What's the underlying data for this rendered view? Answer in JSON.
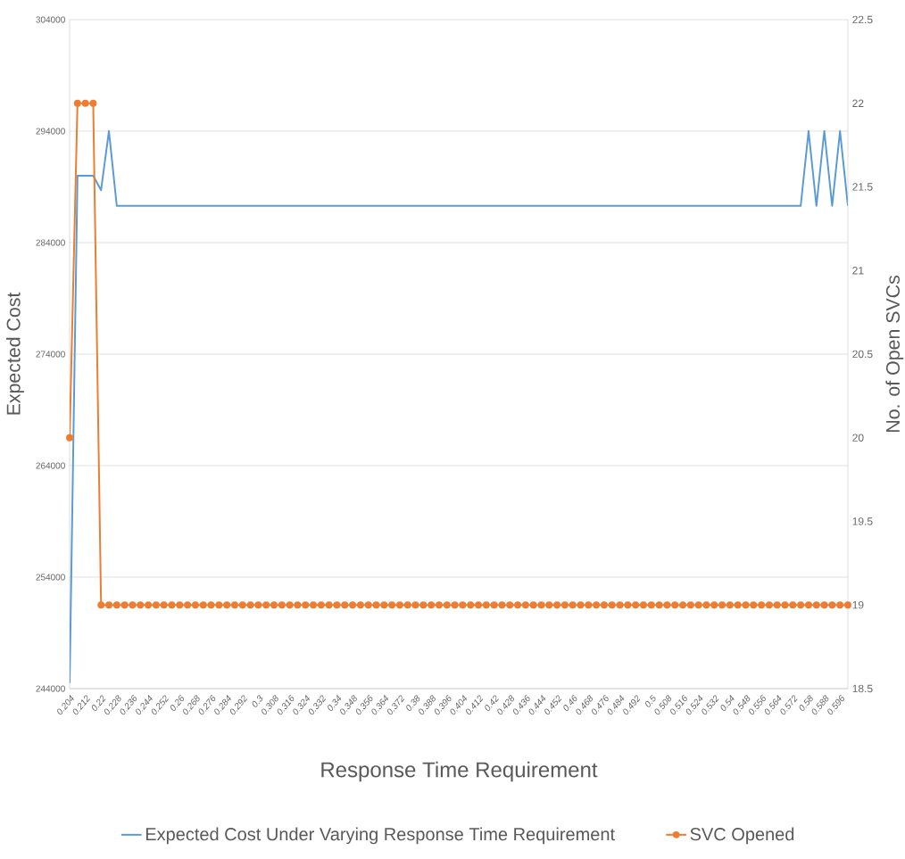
{
  "chart_data": {
    "type": "line",
    "xlabel": "Response Time Requirement",
    "ylabel": "Expected Cost",
    "y2label": "No. of Open SVCs",
    "categories": [
      "0.204",
      null,
      "0.212",
      null,
      "0.22",
      null,
      "0.228",
      null,
      "0.236",
      null,
      "0.244",
      null,
      "0.252",
      null,
      "0.26",
      null,
      "0.268",
      null,
      "0.276",
      null,
      "0.284",
      null,
      "0.292",
      null,
      "0.3",
      null,
      "0.308",
      null,
      "0.316",
      null,
      "0.324",
      null,
      "0.332",
      null,
      "0.34",
      null,
      "0.348",
      null,
      "0.356",
      null,
      "0.364",
      null,
      "0.372",
      null,
      "0.38",
      null,
      "0.388",
      null,
      "0.396",
      null,
      "0.404",
      null,
      "0.412",
      null,
      "0.42",
      null,
      "0.428",
      null,
      "0.436",
      null,
      "0.444",
      null,
      "0.452",
      null,
      "0.46",
      null,
      "0.468",
      null,
      "0.476",
      null,
      "0.484",
      null,
      "0.492",
      null,
      "0.5",
      null,
      "0.508",
      null,
      "0.516",
      null,
      "0.524",
      null,
      "0.532",
      null,
      "0.54",
      null,
      "0.548",
      null,
      "0.556",
      null,
      "0.564",
      null,
      "0.572",
      null,
      "0.58",
      null,
      "0.588",
      null,
      "0.596",
      null
    ],
    "series": [
      {
        "name": "Expected Cost Under Varying Response Time Requirement",
        "color": "#5b9bd5",
        "marker": "none",
        "values": [
          244500,
          290000,
          290000,
          290000,
          288700,
          294000,
          287300,
          287300,
          287300,
          287300,
          287300,
          287300,
          287300,
          287300,
          287300,
          287300,
          287300,
          287300,
          287300,
          287300,
          287300,
          287300,
          287300,
          287300,
          287300,
          287300,
          287300,
          287300,
          287300,
          287300,
          287300,
          287300,
          287300,
          287300,
          287300,
          287300,
          287300,
          287300,
          287300,
          287300,
          287300,
          287300,
          287300,
          287300,
          287300,
          287300,
          287300,
          287300,
          287300,
          287300,
          287300,
          287300,
          287300,
          287300,
          287300,
          287300,
          287300,
          287300,
          287300,
          287300,
          287300,
          287300,
          287300,
          287300,
          287300,
          287300,
          287300,
          287300,
          287300,
          287300,
          287300,
          287300,
          287300,
          287300,
          287300,
          287300,
          287300,
          287300,
          287300,
          287300,
          287300,
          287300,
          287300,
          287300,
          287300,
          287300,
          287300,
          287300,
          287300,
          287300,
          287300,
          287300,
          287300,
          287300,
          294000,
          287300,
          294000,
          287300,
          294000,
          287300
        ]
      },
      {
        "name": "SVC Opened",
        "color": "#ed7d31",
        "marker": "circle",
        "axis": "y2",
        "values": [
          20,
          22,
          22,
          22,
          19,
          19,
          19,
          19,
          19,
          19,
          19,
          19,
          19,
          19,
          19,
          19,
          19,
          19,
          19,
          19,
          19,
          19,
          19,
          19,
          19,
          19,
          19,
          19,
          19,
          19,
          19,
          19,
          19,
          19,
          19,
          19,
          19,
          19,
          19,
          19,
          19,
          19,
          19,
          19,
          19,
          19,
          19,
          19,
          19,
          19,
          19,
          19,
          19,
          19,
          19,
          19,
          19,
          19,
          19,
          19,
          19,
          19,
          19,
          19,
          19,
          19,
          19,
          19,
          19,
          19,
          19,
          19,
          19,
          19,
          19,
          19,
          19,
          19,
          19,
          19,
          19,
          19,
          19,
          19,
          19,
          19,
          19,
          19,
          19,
          19,
          19,
          19,
          19,
          19,
          19,
          19,
          19,
          19,
          19,
          19
        ]
      }
    ],
    "ylim": [
      244000,
      304000
    ],
    "yticks": [
      244000,
      254000,
      264000,
      274000,
      284000,
      294000,
      304000
    ],
    "y2lim": [
      18.5,
      22.5
    ],
    "y2ticks": [
      18.5,
      19,
      19.5,
      20,
      20.5,
      21,
      21.5,
      22,
      22.5
    ],
    "grid": "y",
    "legend": "bottom"
  }
}
